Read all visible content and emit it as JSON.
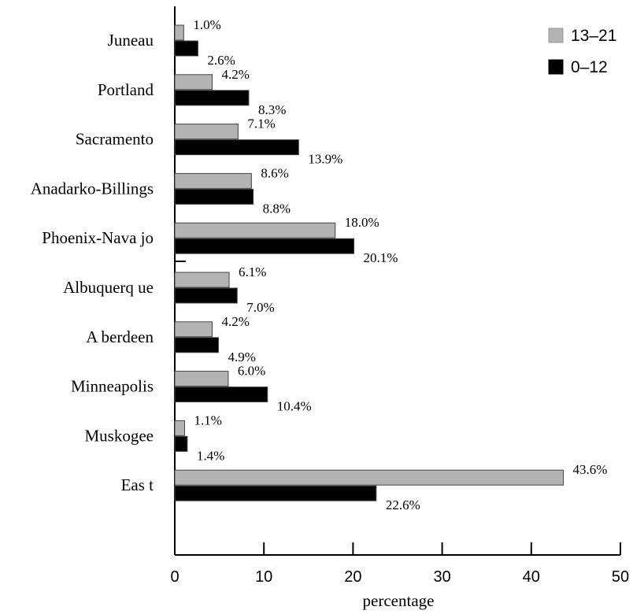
{
  "chart_data": {
    "type": "bar",
    "orientation": "horizontal",
    "categories": [
      "Juneau",
      "Portland",
      "Sacramento",
      "Anadarko-Billings",
      "Phoenix-Nava jo",
      "Albuquerq ue",
      "A berdeen",
      "Minneapolis",
      "Muskogee",
      "Eas t"
    ],
    "series": [
      {
        "name": "13–21",
        "color": "#b3b3b3",
        "values": [
          1.0,
          4.2,
          7.1,
          8.6,
          18.0,
          6.1,
          4.2,
          6.0,
          1.1,
          43.6
        ],
        "labels": [
          "1.0%",
          "4.2%",
          "7.1%",
          "8.6%",
          "18.0%",
          "6.1%",
          "4.2%",
          "6.0%",
          "1.1%",
          "43.6%"
        ]
      },
      {
        "name": "0–12",
        "color": "#000000",
        "values": [
          2.6,
          8.3,
          13.9,
          8.8,
          20.1,
          7.0,
          4.9,
          10.4,
          1.4,
          22.6
        ],
        "labels": [
          "2.6%",
          "8.3%",
          "13.9%",
          "8.8%",
          "20.1%",
          "7.0%",
          "4.9%",
          "10.4%",
          "1.4%",
          "22.6%"
        ]
      }
    ],
    "xlabel": "percentage",
    "ylabel": "",
    "title": "",
    "xlim": [
      0,
      50
    ],
    "xticks": [
      "0",
      "10",
      "20",
      "30",
      "40",
      "50"
    ],
    "grid": false,
    "legend_position": "top-right"
  }
}
